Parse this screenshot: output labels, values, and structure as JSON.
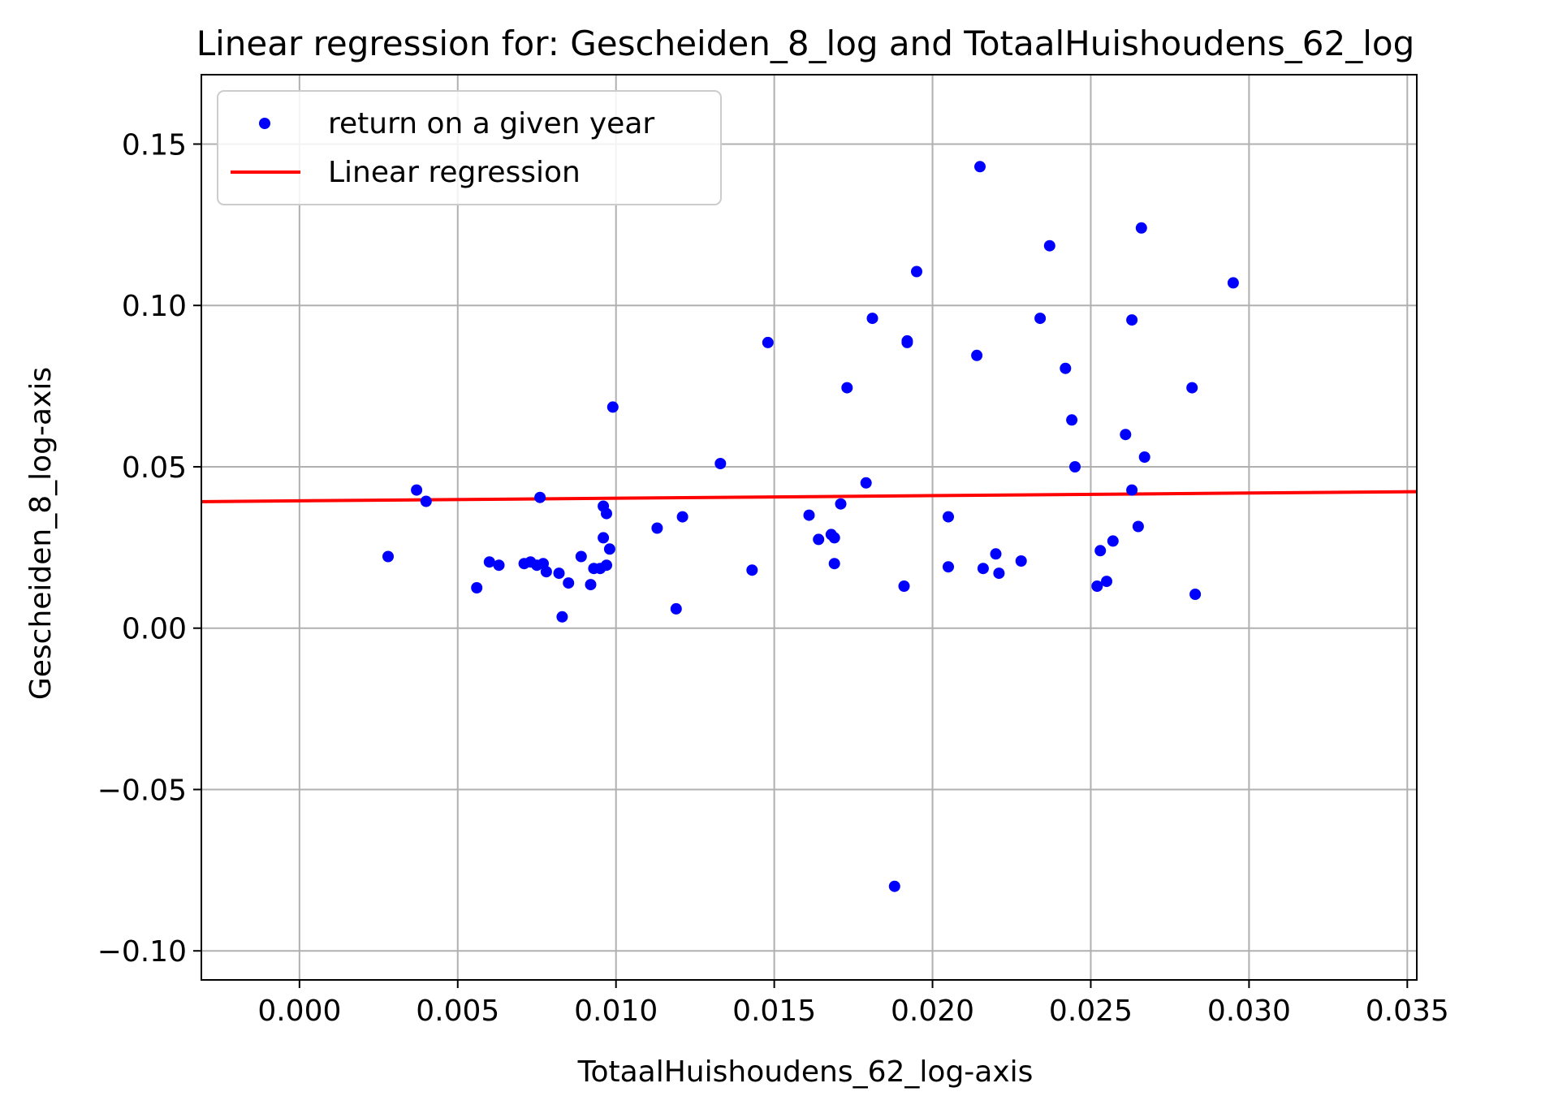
{
  "chart_data": {
    "type": "scatter",
    "title": "Linear regression for: Gescheiden_8_log and TotaalHuishoudens_62_log",
    "xlabel": "TotaalHuishoudens_62_log-axis",
    "ylabel": "Gescheiden_8_log-axis",
    "xlim": [
      -0.0031,
      0.0353
    ],
    "ylim": [
      -0.109,
      0.1715
    ],
    "xticks": [
      0.0,
      0.005,
      0.01,
      0.015,
      0.02,
      0.025,
      0.03,
      0.035
    ],
    "xtick_labels": [
      "0.000",
      "0.005",
      "0.010",
      "0.015",
      "0.020",
      "0.025",
      "0.030",
      "0.035"
    ],
    "yticks": [
      -0.1,
      -0.05,
      0.0,
      0.05,
      0.1,
      0.15
    ],
    "ytick_labels": [
      "−0.10",
      "−0.05",
      "0.00",
      "0.05",
      "0.10",
      "0.15"
    ],
    "grid": true,
    "legend_position": "top-left",
    "series": [
      {
        "name": "return on a given year",
        "kind": "scatter",
        "color": "#0000ff",
        "points": [
          [
            0.0028,
            0.0222
          ],
          [
            0.0037,
            0.0428
          ],
          [
            0.004,
            0.0393
          ],
          [
            0.0056,
            0.0125
          ],
          [
            0.006,
            0.0205
          ],
          [
            0.0063,
            0.0195
          ],
          [
            0.0071,
            0.02
          ],
          [
            0.0073,
            0.0205
          ],
          [
            0.0075,
            0.0195
          ],
          [
            0.0076,
            0.0405
          ],
          [
            0.0077,
            0.02
          ],
          [
            0.0078,
            0.0175
          ],
          [
            0.0082,
            0.017
          ],
          [
            0.0083,
            0.0035
          ],
          [
            0.0085,
            0.014
          ],
          [
            0.0089,
            0.0222
          ],
          [
            0.0092,
            0.0135
          ],
          [
            0.0093,
            0.0185
          ],
          [
            0.0095,
            0.0185
          ],
          [
            0.0096,
            0.0378
          ],
          [
            0.0097,
            0.0355
          ],
          [
            0.0096,
            0.028
          ],
          [
            0.0098,
            0.0245
          ],
          [
            0.0097,
            0.0195
          ],
          [
            0.0099,
            0.0685
          ],
          [
            0.0113,
            0.031
          ],
          [
            0.0119,
            0.006
          ],
          [
            0.0121,
            0.0345
          ],
          [
            0.0133,
            0.051
          ],
          [
            0.0143,
            0.018
          ],
          [
            0.0148,
            0.0885
          ],
          [
            0.0161,
            0.035
          ],
          [
            0.0164,
            0.0275
          ],
          [
            0.0168,
            0.029
          ],
          [
            0.0169,
            0.028
          ],
          [
            0.0169,
            0.02
          ],
          [
            0.0171,
            0.0385
          ],
          [
            0.0173,
            0.0745
          ],
          [
            0.0179,
            0.045
          ],
          [
            0.0181,
            0.096
          ],
          [
            0.0188,
            -0.08
          ],
          [
            0.0191,
            0.013
          ],
          [
            0.0192,
            0.089
          ],
          [
            0.0192,
            0.0885
          ],
          [
            0.0195,
            0.1105
          ],
          [
            0.0205,
            0.0345
          ],
          [
            0.0205,
            0.019
          ],
          [
            0.0214,
            0.0845
          ],
          [
            0.0215,
            0.143
          ],
          [
            0.0216,
            0.0185
          ],
          [
            0.022,
            0.023
          ],
          [
            0.0221,
            0.017
          ],
          [
            0.0228,
            0.0208
          ],
          [
            0.0234,
            0.096
          ],
          [
            0.0237,
            0.1185
          ],
          [
            0.0242,
            0.0805
          ],
          [
            0.0244,
            0.0645
          ],
          [
            0.0245,
            0.05
          ],
          [
            0.0252,
            0.013
          ],
          [
            0.0253,
            0.024
          ],
          [
            0.0255,
            0.0145
          ],
          [
            0.0257,
            0.027
          ],
          [
            0.0261,
            0.06
          ],
          [
            0.0263,
            0.0955
          ],
          [
            0.0263,
            0.0428
          ],
          [
            0.0265,
            0.0315
          ],
          [
            0.0266,
            0.124
          ],
          [
            0.0267,
            0.053
          ],
          [
            0.0282,
            0.0745
          ],
          [
            0.0283,
            0.0105
          ],
          [
            0.0295,
            0.107
          ]
        ]
      },
      {
        "name": "Linear regression",
        "kind": "line",
        "color": "#ff0000",
        "points": [
          [
            -0.0031,
            0.0392
          ],
          [
            0.0353,
            0.0423
          ]
        ]
      }
    ]
  }
}
